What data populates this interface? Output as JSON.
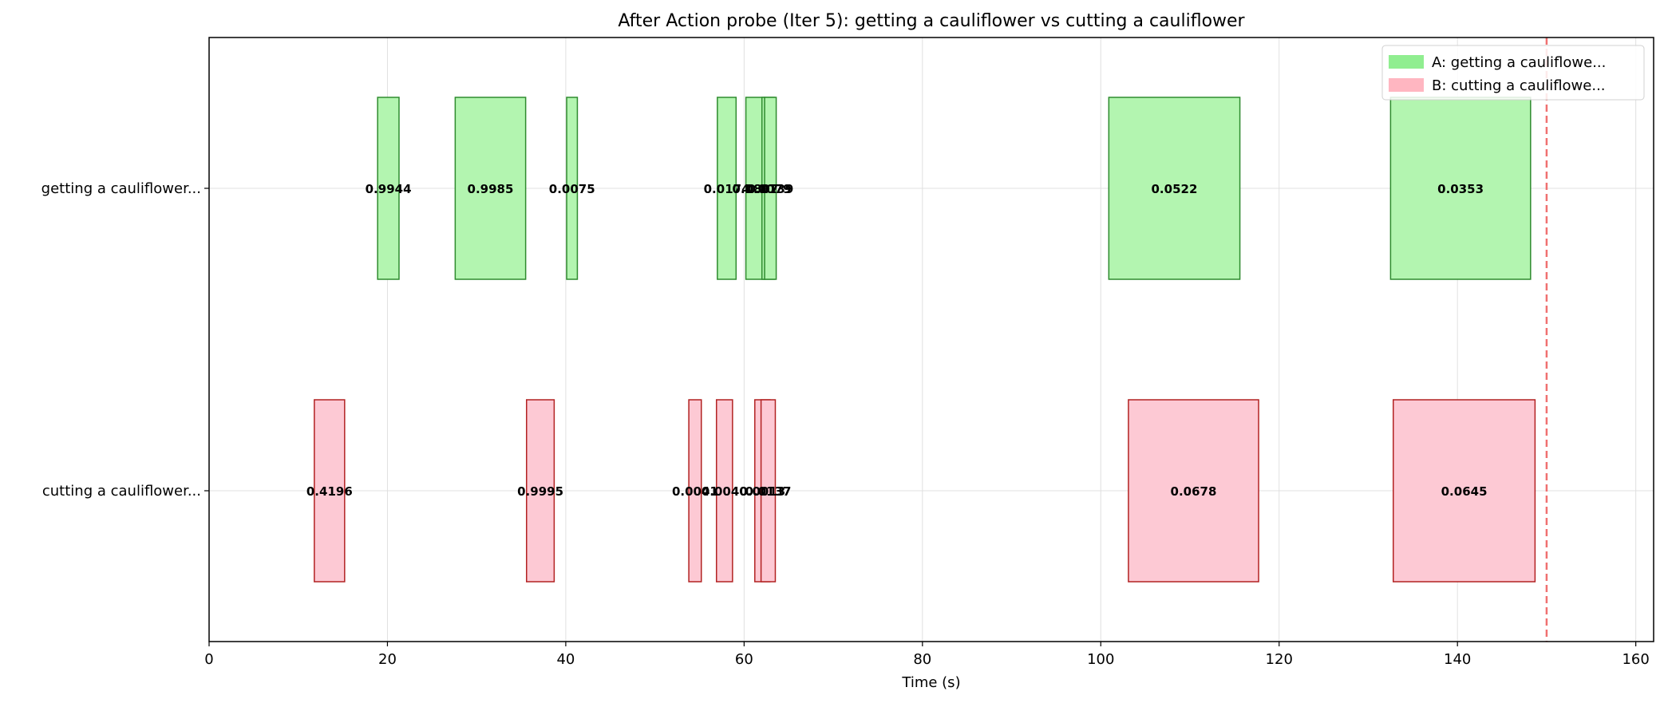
{
  "chart_data": {
    "type": "bar",
    "orientation": "horizontal-interval",
    "title": "After Action probe (Iter 5): getting a cauliflower vs cutting a cauliflower",
    "xlabel": "Time (s)",
    "ylabel": "",
    "xlim": [
      0,
      162
    ],
    "xticks": [
      0,
      20,
      40,
      60,
      80,
      100,
      120,
      140,
      160
    ],
    "grid": true,
    "legend_position": "top-right",
    "threshold_line": {
      "x": 150,
      "color": "#f07070",
      "style": "dashed"
    },
    "rows": [
      "getting a cauliflower...",
      "cutting a cauliflower..."
    ],
    "series": [
      {
        "name": "A: getting a cauliflowe...",
        "row": 0,
        "fill": "#b3f5b0",
        "legend_fill": "#90ee90",
        "stroke": "#2e8b2e",
        "segments": [
          {
            "start": 18.9,
            "end": 21.3,
            "value": "0.9944"
          },
          {
            "start": 27.6,
            "end": 35.5,
            "value": "0.9985"
          },
          {
            "start": 40.1,
            "end": 41.3,
            "value": "0.0075"
          },
          {
            "start": 57.0,
            "end": 59.1,
            "value": "0.0174"
          },
          {
            "start": 60.2,
            "end": 62.3,
            "value": "0.0807"
          },
          {
            "start": 62.0,
            "end": 63.4,
            "value": "0.0079"
          },
          {
            "start": 62.3,
            "end": 63.6,
            "value": "0.0139"
          },
          {
            "start": 100.9,
            "end": 115.6,
            "value": "0.0522"
          },
          {
            "start": 132.5,
            "end": 148.2,
            "value": "0.0353"
          }
        ]
      },
      {
        "name": "B: cutting a cauliflowe...",
        "row": 1,
        "fill": "#fdc9d4",
        "legend_fill": "#ffb6c1",
        "stroke": "#b22222",
        "segments": [
          {
            "start": 11.8,
            "end": 15.2,
            "value": "0.4196"
          },
          {
            "start": 35.6,
            "end": 38.7,
            "value": "0.9995"
          },
          {
            "start": 53.8,
            "end": 55.2,
            "value": "0.0041"
          },
          {
            "start": 56.9,
            "end": 58.7,
            "value": "0.0040"
          },
          {
            "start": 61.2,
            "end": 62.9,
            "value": "0.0013"
          },
          {
            "start": 61.9,
            "end": 63.5,
            "value": "0.0137"
          },
          {
            "start": 103.1,
            "end": 117.7,
            "value": "0.0678"
          },
          {
            "start": 132.8,
            "end": 148.7,
            "value": "0.0645"
          }
        ]
      }
    ]
  }
}
